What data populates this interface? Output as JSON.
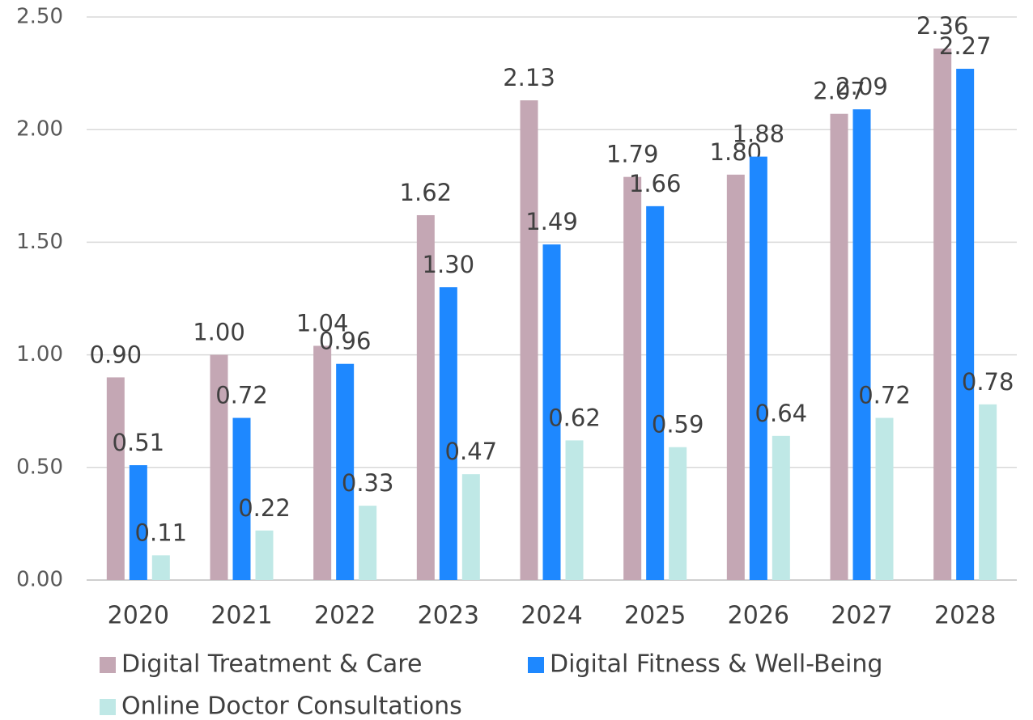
{
  "chart_data": {
    "type": "bar",
    "categories": [
      "2020",
      "2021",
      "2022",
      "2023",
      "2024",
      "2025",
      "2026",
      "2027",
      "2028"
    ],
    "series": [
      {
        "name": "Digital Treatment & Care",
        "color": "#c4a7b4",
        "values": [
          0.9,
          1.0,
          1.04,
          1.62,
          2.13,
          1.79,
          1.8,
          2.07,
          2.36
        ],
        "value_labels": [
          "0.90",
          "1.00",
          "1.04",
          "1.62",
          "2.13",
          "1.79",
          "1.80",
          "2.07",
          "2.36"
        ]
      },
      {
        "name": "Digital Fitness & Well-Being",
        "color": "#1e88ff",
        "values": [
          0.51,
          0.72,
          0.96,
          1.3,
          1.49,
          1.66,
          1.88,
          2.09,
          2.27
        ],
        "value_labels": [
          "0.51",
          "0.72",
          "0.96",
          "1.30",
          "1.49",
          "1.66",
          "1.88",
          "2.09",
          "2.27"
        ]
      },
      {
        "name": "Online Doctor Consultations",
        "color": "#bfe8e6",
        "values": [
          0.11,
          0.22,
          0.33,
          0.47,
          0.62,
          0.59,
          0.64,
          0.72,
          0.78
        ],
        "value_labels": [
          "0.11",
          "0.22",
          "0.33",
          "0.47",
          "0.62",
          "0.59",
          "0.64",
          "0.72",
          "0.78"
        ]
      }
    ],
    "ylim": [
      0,
      2.5
    ],
    "yticks": [
      {
        "value": 0,
        "label": "0.00"
      },
      {
        "value": 0.5,
        "label": "0.50"
      },
      {
        "value": 1,
        "label": "1.00"
      },
      {
        "value": 1.5,
        "label": "1.50"
      },
      {
        "value": 2,
        "label": "2.00"
      },
      {
        "value": 2.5,
        "label": "2.50"
      }
    ],
    "grid": true
  }
}
